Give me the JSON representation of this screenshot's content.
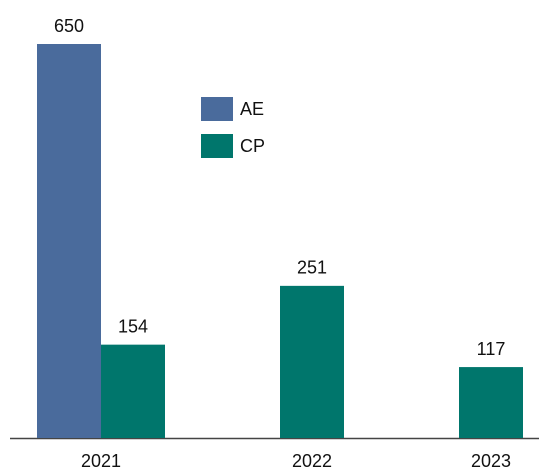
{
  "chart_data": {
    "type": "bar",
    "categories": [
      "2021",
      "2022",
      "2023"
    ],
    "series": [
      {
        "name": "AE",
        "color": "#4a6b9c",
        "values": [
          650,
          null,
          null
        ]
      },
      {
        "name": "CP",
        "color": "#00766c",
        "values": [
          154,
          251,
          117
        ]
      }
    ],
    "ylim": [
      0,
      650
    ]
  }
}
